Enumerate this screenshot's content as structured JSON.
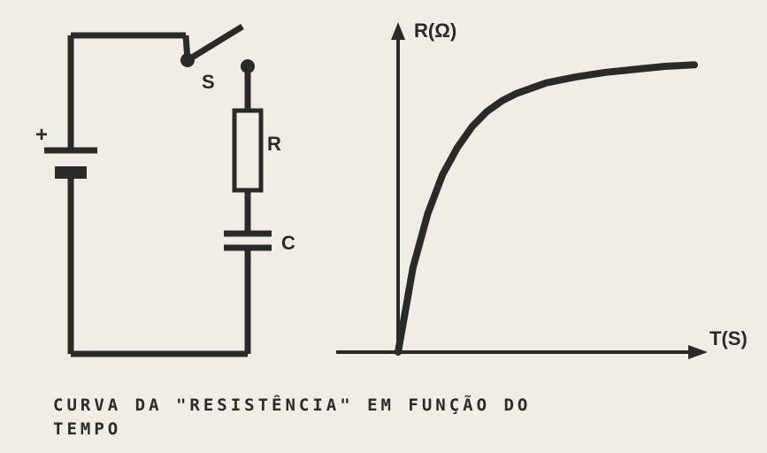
{
  "circuit": {
    "switch_label": "S",
    "resistor_label": "R",
    "capacitor_label": "C",
    "battery_label": "+",
    "stroke_color": "#2a2a28",
    "stroke_width_thick": 7,
    "stroke_width_thin": 3,
    "label_fontsize": 22
  },
  "graph": {
    "type": "line",
    "y_axis_label": "R(Ω)",
    "x_axis_label": "T(S)",
    "stroke_color": "#2a2a28",
    "axis_width": 4,
    "curve_width": 8,
    "label_fontsize": 22,
    "xlim": [
      0,
      10
    ],
    "ylim": [
      0,
      10
    ],
    "curve_points": [
      [
        0,
        0
      ],
      [
        0.5,
        2.8
      ],
      [
        1,
        4.6
      ],
      [
        1.5,
        5.9
      ],
      [
        2,
        6.8
      ],
      [
        2.5,
        7.5
      ],
      [
        3,
        8.0
      ],
      [
        3.5,
        8.35
      ],
      [
        4,
        8.6
      ],
      [
        5,
        8.95
      ],
      [
        6,
        9.15
      ],
      [
        7,
        9.3
      ],
      [
        8,
        9.4
      ],
      [
        9,
        9.5
      ],
      [
        10,
        9.55
      ]
    ]
  },
  "caption": {
    "line1": "CURVA DA \"RESISTÊNCIA\" EM FUNÇÃO DO",
    "line2": "TEMPO",
    "fontsize": 19,
    "color": "#2a2a28"
  }
}
